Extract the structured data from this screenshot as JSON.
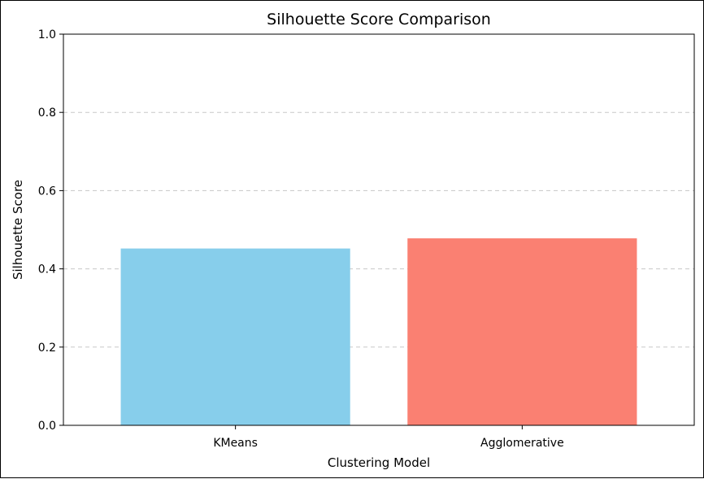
{
  "chart_data": {
    "type": "bar",
    "title": "Silhouette Score Comparison",
    "xlabel": "Clustering Model",
    "ylabel": "Silhouette Score",
    "categories": [
      "KMeans",
      "Agglomerative"
    ],
    "values": [
      0.452,
      0.478
    ],
    "colors": [
      "#87ceeb",
      "#fa8072"
    ],
    "ylim": [
      0.0,
      1.0
    ],
    "yticks": [
      "0.0",
      "0.2",
      "0.4",
      "0.6",
      "0.8",
      "1.0"
    ],
    "grid": "y-dashed",
    "legend": "none"
  },
  "colors": {
    "grid": "#c8c8c8",
    "axis": "#000000"
  }
}
